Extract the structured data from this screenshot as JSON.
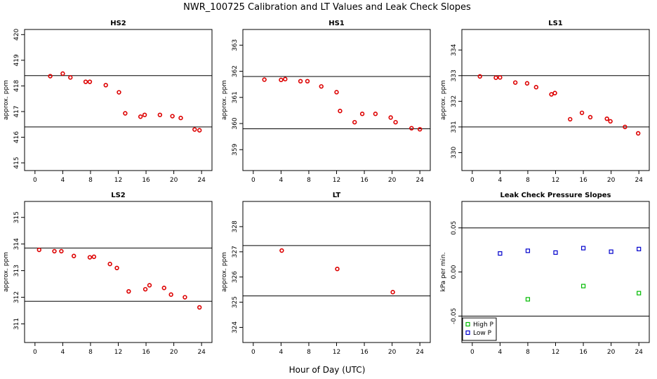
{
  "title": "NWR_100725  Calibration and LT Values and Leak Check Slopes",
  "xlabel": "Hour of Day (UTC)",
  "chart_data": [
    {
      "type": "scatter",
      "title": "HS2",
      "ylabel": "approx. ppm",
      "xlim": [
        -1.5,
        25.5
      ],
      "ylim": [
        414.7,
        420.2
      ],
      "xticks": [
        0,
        4,
        8,
        12,
        16,
        20,
        24
      ],
      "yticks": [
        415,
        416,
        417,
        418,
        419,
        420
      ],
      "reference_lines": [
        418.4,
        416.4
      ],
      "series": [
        {
          "name": "values",
          "color": "#dd0000",
          "marker": "circle",
          "x": [
            2.2,
            4.0,
            5.1,
            7.3,
            7.9,
            10.2,
            12.1,
            13.0,
            15.2,
            15.8,
            18.0,
            19.8,
            21.0,
            23.0,
            23.7
          ],
          "y": [
            418.38,
            418.48,
            418.33,
            418.16,
            418.16,
            418.03,
            417.75,
            416.93,
            416.8,
            416.87,
            416.87,
            416.82,
            416.75,
            416.3,
            416.27
          ]
        }
      ]
    },
    {
      "type": "scatter",
      "title": "HS1",
      "ylabel": "approx. ppm",
      "xlim": [
        -1.5,
        25.5
      ],
      "ylim": [
        358.2,
        363.6
      ],
      "xticks": [
        0,
        4,
        8,
        12,
        16,
        20,
        24
      ],
      "yticks": [
        359,
        360,
        361,
        362,
        363
      ],
      "reference_lines": [
        361.8,
        359.8
      ],
      "series": [
        {
          "name": "values",
          "color": "#dd0000",
          "marker": "circle",
          "x": [
            1.6,
            4.0,
            4.6,
            6.8,
            7.8,
            9.8,
            12.0,
            12.5,
            14.6,
            15.7,
            17.6,
            19.8,
            20.5,
            22.8,
            24.0
          ],
          "y": [
            361.68,
            361.67,
            361.7,
            361.62,
            361.62,
            361.42,
            361.2,
            360.48,
            360.05,
            360.37,
            360.37,
            360.23,
            360.05,
            359.82,
            359.78
          ]
        }
      ]
    },
    {
      "type": "scatter",
      "title": "LS1",
      "ylabel": "approx. ppm",
      "xlim": [
        -1.5,
        25.5
      ],
      "ylim": [
        329.3,
        334.8
      ],
      "xticks": [
        0,
        4,
        8,
        12,
        16,
        20,
        24
      ],
      "yticks": [
        330,
        331,
        332,
        333,
        334
      ],
      "reference_lines": [
        333.0,
        331.0
      ],
      "series": [
        {
          "name": "values",
          "color": "#dd0000",
          "marker": "circle",
          "x": [
            1.1,
            3.4,
            4.0,
            6.2,
            7.9,
            9.2,
            11.4,
            11.9,
            14.1,
            15.8,
            17.0,
            19.4,
            19.9,
            22.0,
            23.9
          ],
          "y": [
            332.97,
            332.92,
            332.93,
            332.73,
            332.7,
            332.55,
            332.27,
            332.32,
            331.3,
            331.55,
            331.38,
            331.32,
            331.22,
            331.0,
            330.75
          ]
        }
      ]
    },
    {
      "type": "scatter",
      "title": "LS2",
      "ylabel": "approx. ppm",
      "xlim": [
        -1.5,
        25.5
      ],
      "ylim": [
        310.3,
        315.6
      ],
      "xticks": [
        0,
        4,
        8,
        12,
        16,
        20,
        24
      ],
      "yticks": [
        311,
        312,
        313,
        314,
        315
      ],
      "reference_lines": [
        313.85,
        311.85
      ],
      "series": [
        {
          "name": "values",
          "color": "#dd0000",
          "marker": "circle",
          "x": [
            0.6,
            2.8,
            3.8,
            5.6,
            7.9,
            8.5,
            10.8,
            11.8,
            13.5,
            15.9,
            16.5,
            18.6,
            19.6,
            21.6,
            23.7
          ],
          "y": [
            313.78,
            313.73,
            313.73,
            313.55,
            313.5,
            313.52,
            313.25,
            313.1,
            312.22,
            312.3,
            312.45,
            312.35,
            312.1,
            312.0,
            311.62
          ]
        }
      ]
    },
    {
      "type": "scatter",
      "title": "LT",
      "ylabel": "approx. ppm",
      "xlim": [
        -1.5,
        25.5
      ],
      "ylim": [
        323.4,
        329.0
      ],
      "xticks": [
        0,
        4,
        8,
        12,
        16,
        20,
        24
      ],
      "yticks": [
        324,
        325,
        326,
        327,
        328
      ],
      "reference_lines": [
        327.25,
        325.25
      ],
      "series": [
        {
          "name": "values",
          "color": "#dd0000",
          "marker": "circle",
          "x": [
            4.1,
            12.1,
            20.1
          ],
          "y": [
            327.05,
            326.32,
            325.4
          ]
        }
      ]
    },
    {
      "type": "scatter",
      "title": "Leak Check Pressure Slopes",
      "ylabel": "kPa per min.",
      "xlim": [
        -1.5,
        25.5
      ],
      "ylim": [
        -0.08,
        0.08
      ],
      "xticks": [
        0,
        4,
        8,
        12,
        16,
        20,
        24
      ],
      "yticks": [
        -0.05,
        0.0,
        0.05
      ],
      "ytick_labels": [
        "-0.05",
        "0.00",
        "0.05"
      ],
      "reference_lines": [
        0.05,
        -0.05
      ],
      "legend": {
        "placement": "bottom-left",
        "entries": [
          "High P",
          "Low P"
        ]
      },
      "series": [
        {
          "name": "High P",
          "color": "#00bb00",
          "marker": "square",
          "x": [
            8,
            16,
            24
          ],
          "y": [
            -0.031,
            -0.016,
            -0.024
          ]
        },
        {
          "name": "Low P",
          "color": "#0000cc",
          "marker": "square",
          "x": [
            4,
            8,
            12,
            16,
            20,
            24
          ],
          "y": [
            0.021,
            0.024,
            0.022,
            0.027,
            0.023,
            0.026
          ]
        }
      ]
    }
  ]
}
